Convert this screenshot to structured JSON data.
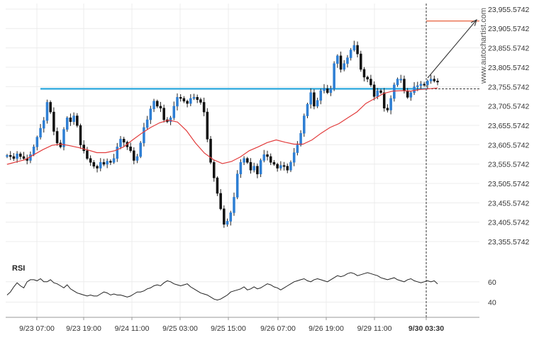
{
  "chart_data": [
    {
      "type": "candlestick",
      "price_axis": {
        "ticks": [
          "23,955.5742",
          "23,905.5742",
          "23,855.5742",
          "23,805.5742",
          "23,755.5742",
          "23,705.5742",
          "23,655.5742",
          "23,605.5742",
          "23,555.5742",
          "23,505.5742",
          "23,455.5742",
          "23,405.5742",
          "23,355.5742"
        ],
        "tick_values": [
          23955.5742,
          23905.5742,
          23855.5742,
          23805.5742,
          23755.5742,
          23705.5742,
          23655.5742,
          23605.5742,
          23555.5742,
          23505.5742,
          23455.5742,
          23405.5742,
          23355.5742
        ],
        "ylim": [
          23330,
          23970
        ]
      },
      "x_ticks": [
        "9/23 07:00",
        "9/23 19:00",
        "9/24 11:00",
        "9/25 03:00",
        "9/25 15:00",
        "9/26 07:00",
        "9/26 19:00",
        "9/29 11:00",
        "9/30 03:30"
      ],
      "support_level": 23750,
      "target_level": 23925,
      "watermark": "www.autochartist.com",
      "candle_path": [
        23578,
        23575,
        23570,
        23582,
        23575,
        23570,
        23565,
        23580,
        23600,
        23625,
        23648,
        23668,
        23715,
        23690,
        23640,
        23610,
        23600,
        23645,
        23675,
        23665,
        23680,
        23655,
        23605,
        23590,
        23570,
        23560,
        23550,
        23545,
        23560,
        23555,
        23563,
        23560,
        23570,
        23600,
        23620,
        23612,
        23600,
        23590,
        23565,
        23575,
        23610,
        23650,
        23670,
        23698,
        23718,
        23705,
        23700,
        23670,
        23665,
        23675,
        23705,
        23728,
        23725,
        23718,
        23712,
        23725,
        23728,
        23722,
        23715,
        23690,
        23620,
        23560,
        23520,
        23480,
        23440,
        23400,
        23408,
        23430,
        23470,
        23530,
        23560,
        23570,
        23560,
        23540,
        23550,
        23530,
        23565,
        23580,
        23575,
        23560,
        23555,
        23545,
        23552,
        23550,
        23540,
        23560,
        23585,
        23605,
        23635,
        23680,
        23710,
        23740,
        23705,
        23720,
        23745,
        23750,
        23740,
        23750,
        23815,
        23835,
        23800,
        23815,
        23830,
        23850,
        23862,
        23840,
        23800,
        23780,
        23775,
        23760,
        23730,
        23745,
        23740,
        23700,
        23695,
        23725,
        23760,
        23775,
        23775,
        23745,
        23728,
        23740,
        23755,
        23758,
        23762,
        23760,
        23770,
        23775,
        23770,
        23768
      ],
      "ma_path": [
        23555,
        23561,
        23567,
        23580,
        23593,
        23604,
        23607,
        23603,
        23598,
        23592,
        23585,
        23585,
        23590,
        23600,
        23618,
        23635,
        23650,
        23662,
        23669,
        23664,
        23642,
        23610,
        23584,
        23567,
        23557,
        23562,
        23574,
        23590,
        23600,
        23611,
        23618,
        23612,
        23607,
        23607,
        23618,
        23635,
        23650,
        23660,
        23675,
        23690,
        23712,
        23725,
        23738,
        23744,
        23745,
        23744,
        23748,
        23750,
        23752
      ],
      "rsi": {
        "label": "RSI",
        "ticks": [
          "60",
          "40"
        ],
        "tick_values": [
          60,
          40
        ],
        "ylim": [
          25,
          78
        ],
        "values": [
          47,
          50,
          55,
          59,
          56,
          54,
          60,
          62,
          62,
          61,
          63,
          60,
          60,
          62,
          59,
          58,
          56,
          54,
          57,
          53,
          51,
          49,
          48,
          47,
          46,
          47,
          46,
          46,
          48,
          50,
          49,
          47,
          48,
          47,
          47,
          46,
          45,
          46,
          48,
          50,
          50,
          51,
          53,
          54,
          56,
          57,
          56,
          59,
          61,
          60,
          58,
          57,
          56,
          57,
          58,
          55,
          53,
          51,
          49,
          48,
          47,
          45,
          43,
          42,
          43,
          45,
          47,
          50,
          51,
          52,
          53,
          55,
          52,
          53,
          55,
          53,
          54,
          56,
          58,
          57,
          55,
          54,
          52,
          54,
          56,
          58,
          60,
          61,
          62,
          63,
          61,
          60,
          62,
          63,
          62,
          61,
          60,
          62,
          64,
          66,
          65,
          66,
          68,
          69,
          68,
          66,
          67,
          68,
          69,
          68,
          67,
          66,
          64,
          63,
          62,
          63,
          64,
          62,
          61,
          60,
          62,
          63,
          61,
          60,
          59,
          60,
          61,
          60,
          61,
          58
        ]
      }
    }
  ]
}
